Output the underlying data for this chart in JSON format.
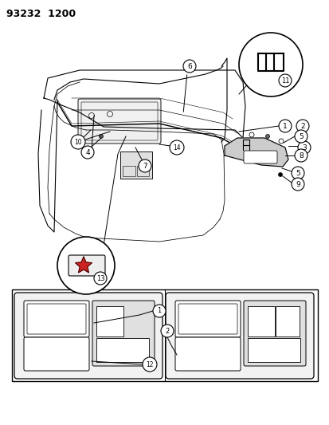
{
  "title": "93232  1200",
  "background_color": "#ffffff",
  "line_color": "#000000",
  "label_fontsize": 6.5,
  "title_fontsize": 9
}
